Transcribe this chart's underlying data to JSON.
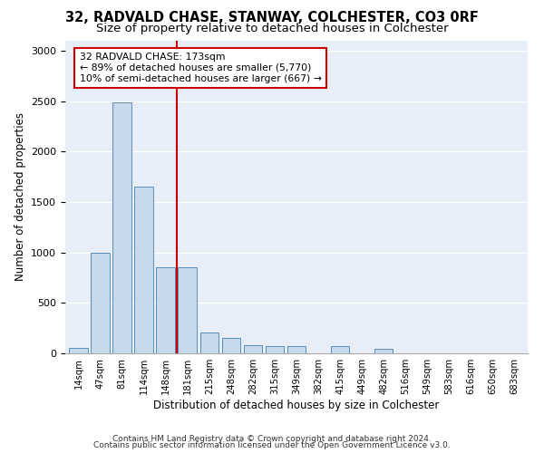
{
  "title1": "32, RADVALD CHASE, STANWAY, COLCHESTER, CO3 0RF",
  "title2": "Size of property relative to detached houses in Colchester",
  "xlabel": "Distribution of detached houses by size in Colchester",
  "ylabel": "Number of detached properties",
  "categories": [
    "14sqm",
    "47sqm",
    "81sqm",
    "114sqm",
    "148sqm",
    "181sqm",
    "215sqm",
    "248sqm",
    "282sqm",
    "315sqm",
    "349sqm",
    "382sqm",
    "415sqm",
    "449sqm",
    "482sqm",
    "516sqm",
    "549sqm",
    "583sqm",
    "616sqm",
    "650sqm",
    "683sqm"
  ],
  "values": [
    50,
    1000,
    2490,
    1650,
    850,
    850,
    210,
    155,
    80,
    75,
    75,
    0,
    75,
    0,
    45,
    0,
    0,
    0,
    0,
    0,
    0
  ],
  "bar_color": "#c9d9ec",
  "bar_edge_color": "#5b8db8",
  "vline_color": "#cc0000",
  "annotation_text": "32 RADVALD CHASE: 173sqm\n← 89% of detached houses are smaller (5,770)\n10% of semi-detached houses are larger (667) →",
  "annotation_box_color": "#cc0000",
  "background_color": "#e8eef7",
  "footer1": "Contains HM Land Registry data © Crown copyright and database right 2024.",
  "footer2": "Contains public sector information licensed under the Open Government Licence v3.0.",
  "ylim": [
    0,
    3100
  ],
  "title1_fontsize": 10.5,
  "title2_fontsize": 9.5,
  "xlabel_fontsize": 8.5,
  "ylabel_fontsize": 8.5
}
